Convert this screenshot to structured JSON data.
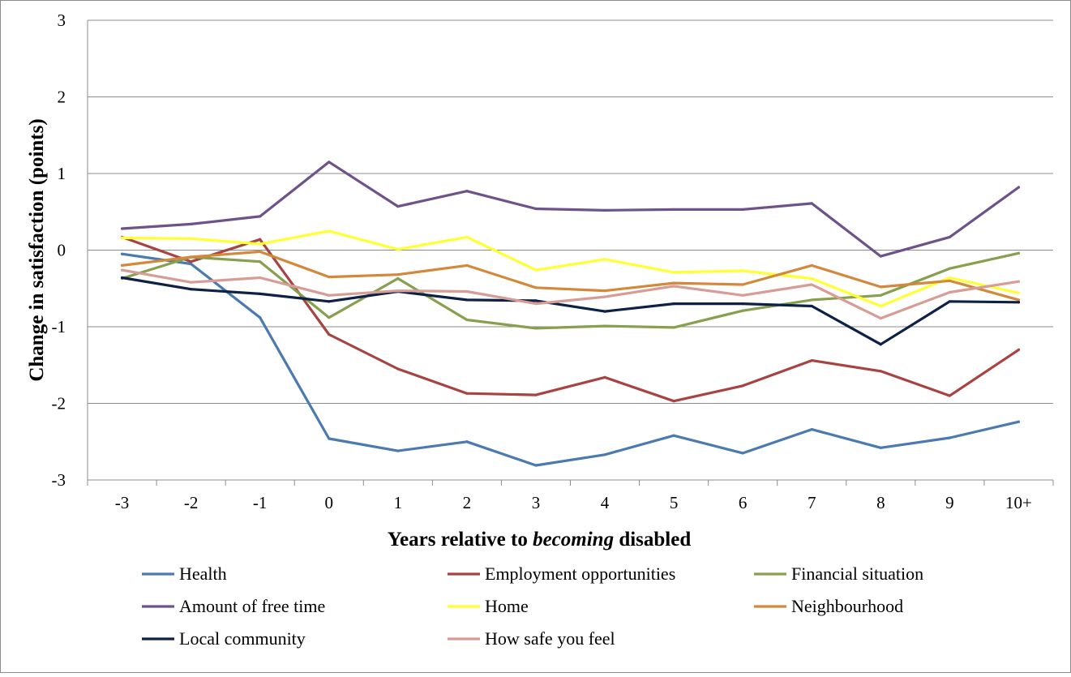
{
  "chart_data": {
    "type": "line",
    "title": "",
    "xlabel_parts": [
      {
        "text": "Years relative to ",
        "italic": false
      },
      {
        "text": "becoming",
        "italic": true
      },
      {
        "text": " disabled",
        "italic": false
      }
    ],
    "ylabel": "Change in satisfaction (points)",
    "categories": [
      "-3",
      "-2",
      "-1",
      "0",
      "1",
      "2",
      "3",
      "4",
      "5",
      "6",
      "7",
      "8",
      "9",
      "10+"
    ],
    "ylim": [
      -3,
      3
    ],
    "yticks": [
      3,
      2,
      1,
      0,
      -1,
      -2,
      -3
    ],
    "ytick_labels": [
      "3",
      "2",
      "1",
      "0",
      "-1",
      "-2",
      "-3"
    ],
    "grid": true,
    "legend_position": "bottom",
    "series": [
      {
        "name": "Health",
        "color": "#4a7ab0",
        "values": [
          -0.05,
          -0.18,
          -0.88,
          -2.46,
          -2.62,
          -2.5,
          -2.81,
          -2.67,
          -2.42,
          -2.65,
          -2.34,
          -2.58,
          -2.45,
          -2.24
        ]
      },
      {
        "name": "Employment opportunities",
        "color": "#a74442",
        "values": [
          0.17,
          -0.15,
          0.14,
          -1.1,
          -1.55,
          -1.87,
          -1.89,
          -1.66,
          -1.97,
          -1.77,
          -1.44,
          -1.58,
          -1.9,
          -1.3
        ]
      },
      {
        "name": "Financial situation",
        "color": "#86a04d",
        "values": [
          -0.37,
          -0.09,
          -0.15,
          -0.88,
          -0.37,
          -0.91,
          -1.02,
          -0.99,
          -1.01,
          -0.79,
          -0.65,
          -0.59,
          -0.24,
          -0.04
        ]
      },
      {
        "name": "Amount of free time",
        "color": "#6d5389",
        "values": [
          0.28,
          0.34,
          0.44,
          1.15,
          0.57,
          0.77,
          0.54,
          0.52,
          0.53,
          0.53,
          0.61,
          -0.08,
          0.17,
          0.82
        ]
      },
      {
        "name": "Home",
        "color": "#ffff33",
        "values": [
          0.16,
          0.15,
          0.08,
          0.25,
          0.01,
          0.17,
          -0.26,
          -0.12,
          -0.29,
          -0.27,
          -0.37,
          -0.73,
          -0.36,
          -0.56
        ]
      },
      {
        "name": "Neighbourhood",
        "color": "#d4883c",
        "values": [
          -0.2,
          -0.09,
          -0.02,
          -0.35,
          -0.32,
          -0.2,
          -0.49,
          -0.53,
          -0.43,
          -0.45,
          -0.2,
          -0.48,
          -0.4,
          -0.65
        ]
      },
      {
        "name": "Local community",
        "color": "#0d2146",
        "values": [
          -0.36,
          -0.51,
          -0.57,
          -0.67,
          -0.54,
          -0.65,
          -0.66,
          -0.8,
          -0.7,
          -0.7,
          -0.73,
          -1.23,
          -0.67,
          -0.68
        ]
      },
      {
        "name": "How safe you feel",
        "color": "#d89c97",
        "values": [
          -0.26,
          -0.42,
          -0.36,
          -0.59,
          -0.53,
          -0.54,
          -0.7,
          -0.61,
          -0.47,
          -0.59,
          -0.45,
          -0.89,
          -0.55,
          -0.41
        ]
      }
    ]
  }
}
